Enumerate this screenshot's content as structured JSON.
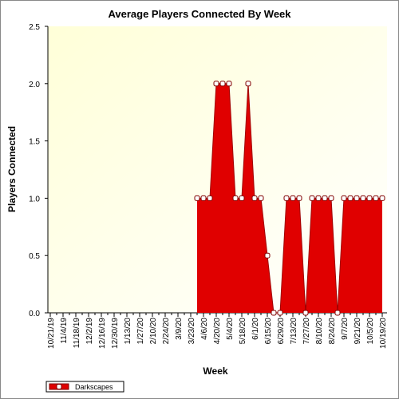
{
  "chart_data": {
    "type": "area",
    "title": "Average Players Connected By Week",
    "x_label": "Week",
    "y_label": "Players Connected",
    "categories": [
      "10/21/19",
      null,
      "11/4/19",
      null,
      "11/18/19",
      null,
      "12/2/19",
      null,
      "12/16/19",
      null,
      "12/30/19",
      null,
      "1/13/20",
      null,
      "1/27/20",
      null,
      "2/10/20",
      null,
      "2/24/20",
      null,
      "3/9/20",
      null,
      "3/23/20",
      null,
      "4/6/20",
      null,
      "4/20/20",
      null,
      "5/4/20",
      null,
      "5/18/20",
      null,
      "6/1/20",
      null,
      "6/15/20",
      null,
      "6/29/20",
      null,
      "7/13/20",
      null,
      "7/27/20",
      null,
      "8/10/20",
      null,
      "8/24/20",
      null,
      "9/7/20",
      null,
      "9/21/20",
      null,
      "10/5/20",
      null,
      "10/19/20"
    ],
    "series": [
      {
        "name": "Darkscapes",
        "color": "#e00000",
        "values": [
          null,
          null,
          null,
          null,
          null,
          null,
          null,
          null,
          null,
          null,
          null,
          null,
          null,
          null,
          null,
          null,
          null,
          null,
          null,
          null,
          null,
          null,
          null,
          1,
          1,
          1,
          2,
          2,
          2,
          1,
          1,
          2,
          1,
          1,
          0.5,
          0,
          0,
          1,
          1,
          1,
          0,
          1,
          1,
          1,
          1,
          0,
          1,
          1,
          1,
          1,
          1,
          1,
          1
        ]
      }
    ],
    "ylim": [
      0,
      2.5
    ],
    "yticks": [
      {
        "value": 0,
        "label": "0.0"
      },
      {
        "value": 0.5,
        "label": "0.5"
      },
      {
        "value": 1,
        "label": "1.0"
      },
      {
        "value": 1.5,
        "label": "1.5"
      },
      {
        "value": 2,
        "label": "2.0"
      },
      {
        "value": 2.5,
        "label": "2.5"
      }
    ]
  }
}
